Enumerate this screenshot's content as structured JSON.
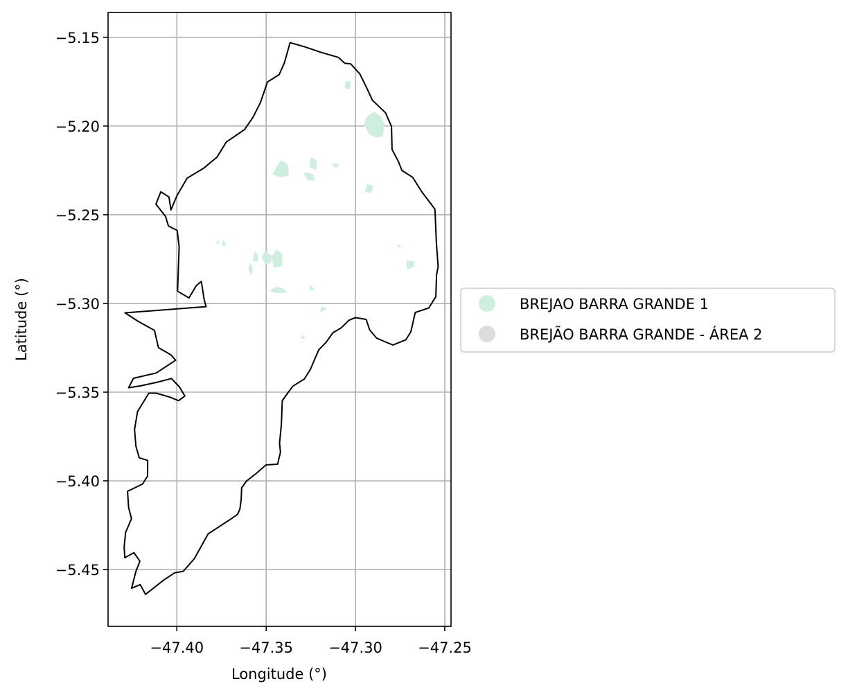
{
  "chart_data": {
    "type": "map",
    "xlabel": "Longitude (°)",
    "ylabel": "Latitude (°)",
    "xlim": [
      -47.4385,
      -47.2465
    ],
    "ylim": [
      -5.482,
      -5.136
    ],
    "xticks": [
      -47.4,
      -47.35,
      -47.3,
      -47.25
    ],
    "xtick_labels": [
      "−47.40",
      "−47.35",
      "−47.30",
      "−47.25"
    ],
    "yticks": [
      -5.15,
      -5.2,
      -5.25,
      -5.3,
      -5.35,
      -5.4,
      -5.45
    ],
    "ytick_labels": [
      "−5.15",
      "−5.20",
      "−5.25",
      "−5.30",
      "−5.35",
      "−5.40",
      "−5.45"
    ],
    "grid": true,
    "legend_position": "outside-right",
    "boundary_color": "#000000",
    "legend": [
      {
        "label": "BREJAO BARRA GRANDE 1",
        "color": "#cfeee0"
      },
      {
        "label": "BREJÃO BARRA GRANDE - ÁREA 2",
        "color": "#dcdcdc"
      }
    ],
    "boundary_outline": [
      [
        -47.3366,
        -5.153
      ],
      [
        -47.3283,
        -5.1554
      ],
      [
        -47.3194,
        -5.1584
      ],
      [
        -47.3096,
        -5.1613
      ],
      [
        -47.306,
        -5.1646
      ],
      [
        -47.3026,
        -5.165
      ],
      [
        -47.2975,
        -5.1707
      ],
      [
        -47.2939,
        -5.1781
      ],
      [
        -47.2905,
        -5.1855
      ],
      [
        -47.2832,
        -5.1925
      ],
      [
        -47.2798,
        -5.2003
      ],
      [
        -47.2795,
        -5.2132
      ],
      [
        -47.276,
        -5.2199
      ],
      [
        -47.274,
        -5.225
      ],
      [
        -47.2679,
        -5.229
      ],
      [
        -47.263,
        -5.2369
      ],
      [
        -47.2555,
        -5.2469
      ],
      [
        -47.2547,
        -5.266
      ],
      [
        -47.2537,
        -5.2793
      ],
      [
        -47.2546,
        -5.2838
      ],
      [
        -47.255,
        -5.2962
      ],
      [
        -47.259,
        -5.3026
      ],
      [
        -47.2665,
        -5.3051
      ],
      [
        -47.269,
        -5.316
      ],
      [
        -47.2718,
        -5.3205
      ],
      [
        -47.279,
        -5.3234
      ],
      [
        -47.2837,
        -5.3215
      ],
      [
        -47.2882,
        -5.3195
      ],
      [
        -47.292,
        -5.315
      ],
      [
        -47.294,
        -5.309
      ],
      [
        -47.3001,
        -5.308
      ],
      [
        -47.3037,
        -5.3095
      ],
      [
        -47.308,
        -5.3138
      ],
      [
        -47.3126,
        -5.3165
      ],
      [
        -47.3165,
        -5.322
      ],
      [
        -47.3205,
        -5.3261
      ],
      [
        -47.323,
        -5.3318
      ],
      [
        -47.3252,
        -5.3371
      ],
      [
        -47.3286,
        -5.3426
      ],
      [
        -47.335,
        -5.3466
      ],
      [
        -47.338,
        -5.3506
      ],
      [
        -47.341,
        -5.3549
      ],
      [
        -47.3412,
        -5.3605
      ],
      [
        -47.3415,
        -5.3683
      ],
      [
        -47.3425,
        -5.3788
      ],
      [
        -47.342,
        -5.3838
      ],
      [
        -47.3436,
        -5.3906
      ],
      [
        -47.3501,
        -5.391
      ],
      [
        -47.3556,
        -5.3959
      ],
      [
        -47.3609,
        -5.4
      ],
      [
        -47.3637,
        -5.4039
      ],
      [
        -47.364,
        -5.4105
      ],
      [
        -47.3647,
        -5.4159
      ],
      [
        -47.366,
        -5.4189
      ],
      [
        -47.3708,
        -5.4222
      ],
      [
        -47.3825,
        -5.4299
      ],
      [
        -47.3902,
        -5.4439
      ],
      [
        -47.3964,
        -5.451
      ],
      [
        -47.4012,
        -5.4518
      ],
      [
        -47.4076,
        -5.4561
      ],
      [
        -47.4175,
        -5.464
      ],
      [
        -47.4205,
        -5.4585
      ],
      [
        -47.4253,
        -5.4605
      ],
      [
        -47.4229,
        -5.451
      ],
      [
        -47.4207,
        -5.4453
      ],
      [
        -47.424,
        -5.4405
      ],
      [
        -47.4291,
        -5.4433
      ],
      [
        -47.4295,
        -5.4373
      ],
      [
        -47.4287,
        -5.4291
      ],
      [
        -47.4254,
        -5.4213
      ],
      [
        -47.427,
        -5.415
      ],
      [
        -47.4276,
        -5.4059
      ],
      [
        -47.4192,
        -5.4018
      ],
      [
        -47.4164,
        -5.3973
      ],
      [
        -47.4163,
        -5.3885
      ],
      [
        -47.4211,
        -5.387
      ],
      [
        -47.4229,
        -5.3805
      ],
      [
        -47.4237,
        -5.371
      ],
      [
        -47.422,
        -5.361
      ],
      [
        -47.4188,
        -5.3557
      ],
      [
        -47.4157,
        -5.3506
      ],
      [
        -47.4115,
        -5.3506
      ],
      [
        -47.4039,
        -5.3528
      ],
      [
        -47.399,
        -5.3548
      ],
      [
        -47.3955,
        -5.3522
      ],
      [
        -47.3985,
        -5.3471
      ],
      [
        -47.403,
        -5.3423
      ],
      [
        -47.4113,
        -5.3445
      ],
      [
        -47.4205,
        -5.3465
      ],
      [
        -47.427,
        -5.3475
      ],
      [
        -47.4243,
        -5.3422
      ],
      [
        -47.4115,
        -5.3392
      ],
      [
        -47.4007,
        -5.332
      ],
      [
        -47.4033,
        -5.329
      ],
      [
        -47.4103,
        -5.3249
      ],
      [
        -47.4125,
        -5.3152
      ],
      [
        -47.4218,
        -5.31
      ],
      [
        -47.429,
        -5.3053
      ],
      [
        -47.3836,
        -5.3018
      ],
      [
        -47.3847,
        -5.2978
      ],
      [
        -47.3863,
        -5.2876
      ],
      [
        -47.3891,
        -5.2899
      ],
      [
        -47.3932,
        -5.2969
      ],
      [
        -47.3996,
        -5.2931
      ],
      [
        -47.3987,
        -5.268
      ],
      [
        -47.3998,
        -5.2589
      ],
      [
        -47.4047,
        -5.2563
      ],
      [
        -47.4063,
        -5.251
      ],
      [
        -47.4117,
        -5.244
      ],
      [
        -47.409,
        -5.2371
      ],
      [
        -47.4044,
        -5.24
      ],
      [
        -47.4033,
        -5.2473
      ],
      [
        -47.3999,
        -5.2392
      ],
      [
        -47.3943,
        -5.2294
      ],
      [
        -47.3849,
        -5.2237
      ],
      [
        -47.3775,
        -5.2175
      ],
      [
        -47.3723,
        -5.209
      ],
      [
        -47.3621,
        -5.202
      ],
      [
        -47.3573,
        -5.195
      ],
      [
        -47.3532,
        -5.1868
      ],
      [
        -47.3493,
        -5.1752
      ],
      [
        -47.3427,
        -5.171
      ],
      [
        -47.3398,
        -5.1644
      ],
      [
        -47.3366,
        -5.153
      ]
    ],
    "marsh_patches": [
      [
        [
          -47.2895,
          -5.1918
        ],
        [
          -47.286,
          -5.1944
        ],
        [
          -47.2835,
          -5.1993
        ],
        [
          -47.2849,
          -5.206
        ],
        [
          -47.2887,
          -5.2065
        ],
        [
          -47.2924,
          -5.2044
        ],
        [
          -47.2951,
          -5.1996
        ],
        [
          -47.294,
          -5.195
        ]
      ],
      [
        [
          -47.3054,
          -5.1747
        ],
        [
          -47.3025,
          -5.175
        ],
        [
          -47.3031,
          -5.1795
        ],
        [
          -47.306,
          -5.1785
        ]
      ],
      [
        [
          -47.3412,
          -5.2193
        ],
        [
          -47.3376,
          -5.222
        ],
        [
          -47.3373,
          -5.2279
        ],
        [
          -47.3419,
          -5.2289
        ],
        [
          -47.3465,
          -5.2274
        ],
        [
          -47.3437,
          -5.2221
        ]
      ],
      [
        [
          -47.3251,
          -5.2175
        ],
        [
          -47.3215,
          -5.2196
        ],
        [
          -47.322,
          -5.2249
        ],
        [
          -47.3258,
          -5.2231
        ]
      ],
      [
        [
          -47.3292,
          -5.2261
        ],
        [
          -47.3238,
          -5.2271
        ],
        [
          -47.3227,
          -5.231
        ],
        [
          -47.327,
          -5.2303
        ]
      ],
      [
        [
          -47.3133,
          -5.2211
        ],
        [
          -47.3089,
          -5.2215
        ],
        [
          -47.311,
          -5.224
        ]
      ],
      [
        [
          -47.2935,
          -5.2328
        ],
        [
          -47.29,
          -5.2338
        ],
        [
          -47.291,
          -5.2378
        ],
        [
          -47.2948,
          -5.2372
        ]
      ],
      [
        [
          -47.3563,
          -5.2703
        ],
        [
          -47.3545,
          -5.273
        ],
        [
          -47.3546,
          -5.2766
        ],
        [
          -47.3576,
          -5.276
        ]
      ],
      [
        [
          -47.3506,
          -5.2704
        ],
        [
          -47.347,
          -5.273
        ],
        [
          -47.347,
          -5.277
        ],
        [
          -47.3505,
          -5.278
        ],
        [
          -47.3525,
          -5.274
        ]
      ],
      [
        [
          -47.3444,
          -5.2694
        ],
        [
          -47.3409,
          -5.272
        ],
        [
          -47.341,
          -5.279
        ],
        [
          -47.3457,
          -5.2799
        ],
        [
          -47.3469,
          -5.274
        ]
      ],
      [
        [
          -47.3441,
          -5.2905
        ],
        [
          -47.3403,
          -5.2917
        ],
        [
          -47.338,
          -5.2939
        ],
        [
          -47.3445,
          -5.2942
        ],
        [
          -47.3482,
          -5.2928
        ]
      ],
      [
        [
          -47.359,
          -5.277
        ],
        [
          -47.3573,
          -5.28
        ],
        [
          -47.3583,
          -5.284
        ],
        [
          -47.36,
          -5.281
        ]
      ],
      [
        [
          -47.3255,
          -5.2898
        ],
        [
          -47.3228,
          -5.292
        ],
        [
          -47.3256,
          -5.293
        ]
      ],
      [
        [
          -47.2713,
          -5.2758
        ],
        [
          -47.267,
          -5.2763
        ],
        [
          -47.2672,
          -5.2793
        ],
        [
          -47.2712,
          -5.2812
        ]
      ],
      [
        [
          -47.277,
          -5.2667
        ],
        [
          -47.2745,
          -5.2672
        ],
        [
          -47.2752,
          -5.269
        ]
      ],
      [
        [
          -47.3189,
          -5.3015
        ],
        [
          -47.3157,
          -5.3031
        ],
        [
          -47.32,
          -5.3048
        ]
      ],
      [
        [
          -47.3305,
          -5.3175
        ],
        [
          -47.3278,
          -5.3198
        ],
        [
          -47.3303,
          -5.32
        ]
      ],
      [
        [
          -47.374,
          -5.264
        ],
        [
          -47.375,
          -5.2675
        ],
        [
          -47.372,
          -5.267
        ]
      ],
      [
        [
          -47.377,
          -5.264
        ],
        [
          -47.378,
          -5.2665
        ],
        [
          -47.376,
          -5.266
        ]
      ]
    ]
  }
}
